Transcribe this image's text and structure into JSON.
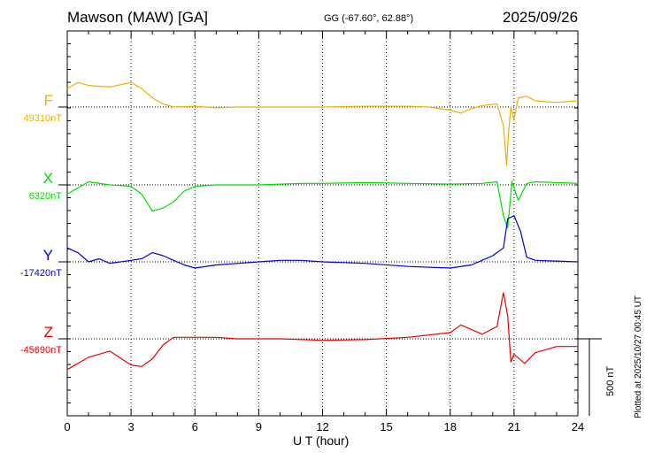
{
  "header": {
    "station": "Mawson (MAW)  [GA]",
    "coords": "GG (-67.60°,  62.88°)",
    "date": "2025/09/26"
  },
  "plotted_note": "Plotted at 2025/10/27 00:45 UT",
  "scale_bar_label": "500 nT",
  "chart_data": {
    "type": "line",
    "xlabel": "U T (hour)",
    "xlim": [
      0,
      24
    ],
    "x_ticks": [
      "0",
      "3",
      "6",
      "9",
      "12",
      "15",
      "18",
      "21",
      "24"
    ],
    "scale_bar_nT": 500,
    "grid": true,
    "series": [
      {
        "name": "F",
        "baseline_label": "49310nT",
        "color": "#f0b000",
        "points": [
          [
            0,
            120
          ],
          [
            0.5,
            160
          ],
          [
            1,
            140
          ],
          [
            2,
            130
          ],
          [
            3,
            160
          ],
          [
            3.5,
            120
          ],
          [
            4,
            60
          ],
          [
            4.5,
            20
          ],
          [
            5,
            0
          ],
          [
            6,
            5
          ],
          [
            7,
            -5
          ],
          [
            8,
            0
          ],
          [
            10,
            0
          ],
          [
            12,
            0
          ],
          [
            14,
            5
          ],
          [
            16,
            5
          ],
          [
            17,
            0
          ],
          [
            18,
            -20
          ],
          [
            18.5,
            -40
          ],
          [
            19,
            -10
          ],
          [
            19.5,
            10
          ],
          [
            20.2,
            20
          ],
          [
            20.5,
            -120
          ],
          [
            20.65,
            -380
          ],
          [
            20.75,
            -150
          ],
          [
            20.85,
            0
          ],
          [
            21,
            -80
          ],
          [
            21.2,
            60
          ],
          [
            21.6,
            70
          ],
          [
            22,
            40
          ],
          [
            23,
            30
          ],
          [
            24,
            40
          ]
        ]
      },
      {
        "name": "X",
        "baseline_label": "6320nT",
        "color": "#00dd00",
        "points": [
          [
            0,
            -60
          ],
          [
            1,
            20
          ],
          [
            2,
            0
          ],
          [
            3,
            -10
          ],
          [
            3.5,
            -60
          ],
          [
            4,
            -170
          ],
          [
            4.5,
            -150
          ],
          [
            5,
            -110
          ],
          [
            5.5,
            -40
          ],
          [
            6,
            -10
          ],
          [
            7,
            0
          ],
          [
            9,
            0
          ],
          [
            11,
            10
          ],
          [
            12,
            10
          ],
          [
            14,
            15
          ],
          [
            16,
            10
          ],
          [
            18,
            5
          ],
          [
            19.5,
            10
          ],
          [
            20.2,
            20
          ],
          [
            20.5,
            -200
          ],
          [
            20.7,
            -280
          ],
          [
            20.9,
            20
          ],
          [
            21.2,
            -100
          ],
          [
            21.6,
            10
          ],
          [
            22,
            20
          ],
          [
            24,
            10
          ]
        ]
      },
      {
        "name": "Y",
        "baseline_label": "-17420nT",
        "color": "#0000dd",
        "points": [
          [
            0,
            90
          ],
          [
            0.5,
            60
          ],
          [
            1,
            0
          ],
          [
            1.5,
            20
          ],
          [
            2,
            -10
          ],
          [
            3,
            10
          ],
          [
            3.5,
            20
          ],
          [
            4,
            60
          ],
          [
            4.5,
            40
          ],
          [
            5,
            10
          ],
          [
            5.5,
            -20
          ],
          [
            6,
            -40
          ],
          [
            7,
            -20
          ],
          [
            9,
            0
          ],
          [
            10,
            10
          ],
          [
            11,
            10
          ],
          [
            12,
            0
          ],
          [
            14,
            -10
          ],
          [
            16,
            -30
          ],
          [
            18,
            -40
          ],
          [
            19,
            -20
          ],
          [
            19.5,
            10
          ],
          [
            20,
            40
          ],
          [
            20.5,
            90
          ],
          [
            20.7,
            280
          ],
          [
            21,
            300
          ],
          [
            21.3,
            200
          ],
          [
            21.6,
            30
          ],
          [
            22,
            10
          ],
          [
            24,
            0
          ]
        ]
      },
      {
        "name": "Z",
        "baseline_label": "-45690nT",
        "color": "#ee0000",
        "points": [
          [
            0,
            -200
          ],
          [
            1,
            -120
          ],
          [
            2,
            -80
          ],
          [
            3,
            -170
          ],
          [
            3.5,
            -180
          ],
          [
            4,
            -130
          ],
          [
            4.5,
            -40
          ],
          [
            5,
            10
          ],
          [
            6,
            10
          ],
          [
            7,
            10
          ],
          [
            8,
            0
          ],
          [
            10,
            0
          ],
          [
            12,
            -10
          ],
          [
            14,
            -5
          ],
          [
            16,
            10
          ],
          [
            18,
            40
          ],
          [
            18.5,
            90
          ],
          [
            19,
            60
          ],
          [
            19.5,
            30
          ],
          [
            20.2,
            80
          ],
          [
            20.5,
            300
          ],
          [
            20.7,
            150
          ],
          [
            20.85,
            -150
          ],
          [
            21,
            -100
          ],
          [
            21.5,
            -160
          ],
          [
            22,
            -90
          ],
          [
            23,
            -50
          ],
          [
            24,
            -50
          ]
        ]
      }
    ]
  }
}
